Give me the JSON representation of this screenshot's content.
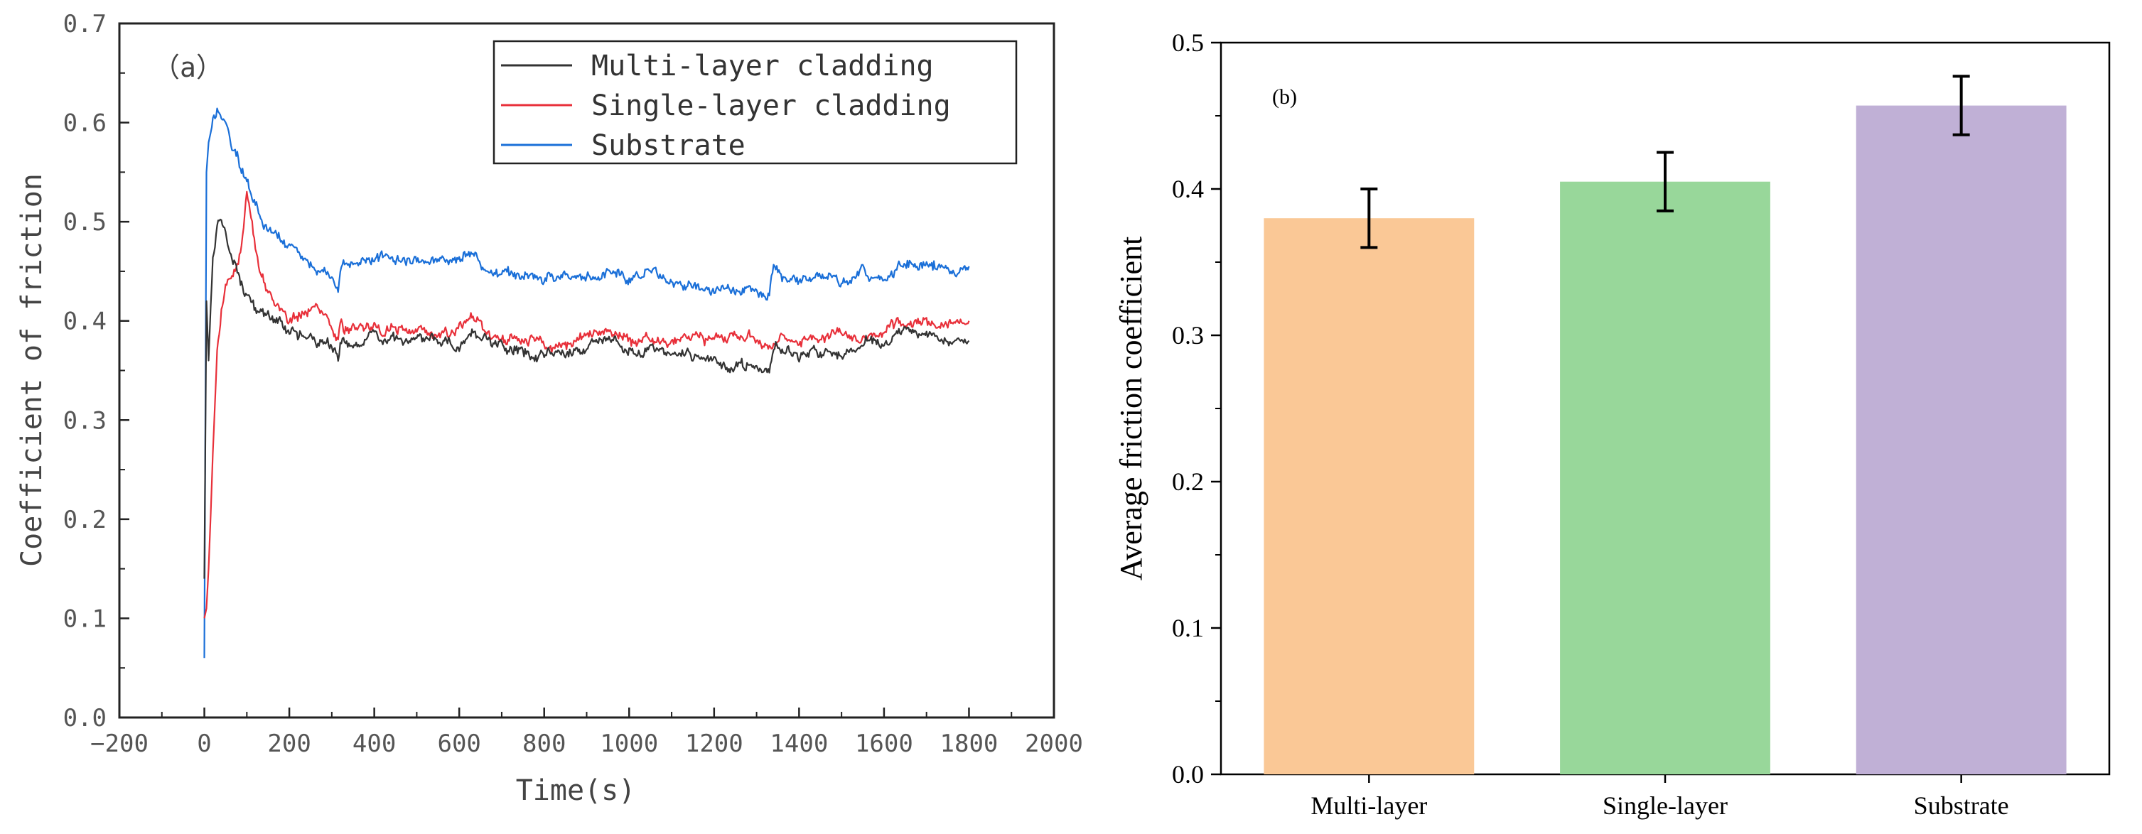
{
  "chart_data": [
    {
      "type": "line",
      "panel_label": "（a）",
      "xlabel": "Time(s)",
      "ylabel": "Coefficient of friction",
      "xlim": [
        -200,
        2000
      ],
      "ylim": [
        0.0,
        0.7
      ],
      "xticks": [
        "−200",
        "0",
        "200",
        "400",
        "600",
        "800",
        "1000",
        "1200",
        "1400",
        "1600",
        "1800",
        "2000"
      ],
      "yticks": [
        "0.0",
        "0.1",
        "0.2",
        "0.3",
        "0.4",
        "0.5",
        "0.6",
        "0.7"
      ],
      "legend_position": "top-right",
      "series": [
        {
          "name": "Multi-layer cladding",
          "color": "#333333",
          "x": [
            0,
            5,
            10,
            20,
            30,
            40,
            50,
            60,
            70,
            80,
            90,
            100,
            120,
            140,
            160,
            180,
            200,
            220,
            240,
            260,
            280,
            300,
            315,
            320,
            330,
            350,
            400,
            450,
            500,
            550,
            600,
            630,
            650,
            700,
            750,
            800,
            850,
            900,
            950,
            1000,
            1050,
            1100,
            1150,
            1200,
            1250,
            1300,
            1330,
            1340,
            1360,
            1400,
            1450,
            1500,
            1550,
            1600,
            1650,
            1700,
            1750,
            1800
          ],
          "y": [
            0.14,
            0.42,
            0.36,
            0.47,
            0.5,
            0.51,
            0.5,
            0.47,
            0.46,
            0.45,
            0.44,
            0.43,
            0.415,
            0.405,
            0.4,
            0.395,
            0.39,
            0.388,
            0.385,
            0.38,
            0.375,
            0.37,
            0.36,
            0.37,
            0.38,
            0.375,
            0.385,
            0.38,
            0.385,
            0.38,
            0.375,
            0.39,
            0.385,
            0.375,
            0.37,
            0.365,
            0.37,
            0.375,
            0.38,
            0.37,
            0.375,
            0.365,
            0.36,
            0.36,
            0.355,
            0.355,
            0.35,
            0.375,
            0.37,
            0.365,
            0.37,
            0.365,
            0.375,
            0.38,
            0.385,
            0.385,
            0.38,
            0.38
          ]
        },
        {
          "name": "Single-layer cladding",
          "color": "#e8303a",
          "x": [
            0,
            5,
            10,
            20,
            30,
            40,
            50,
            60,
            70,
            80,
            90,
            100,
            110,
            120,
            140,
            160,
            180,
            200,
            220,
            240,
            260,
            280,
            300,
            315,
            320,
            330,
            350,
            400,
            450,
            500,
            550,
            600,
            630,
            650,
            700,
            750,
            800,
            850,
            900,
            950,
            1000,
            1050,
            1100,
            1150,
            1200,
            1250,
            1300,
            1330,
            1340,
            1360,
            1400,
            1450,
            1500,
            1550,
            1600,
            1650,
            1700,
            1750,
            1800
          ],
          "y": [
            0.1,
            0.11,
            0.15,
            0.26,
            0.37,
            0.41,
            0.43,
            0.44,
            0.45,
            0.46,
            0.49,
            0.53,
            0.5,
            0.47,
            0.44,
            0.425,
            0.41,
            0.4,
            0.405,
            0.41,
            0.42,
            0.41,
            0.4,
            0.385,
            0.4,
            0.39,
            0.395,
            0.39,
            0.395,
            0.39,
            0.385,
            0.39,
            0.4,
            0.395,
            0.385,
            0.38,
            0.375,
            0.375,
            0.38,
            0.39,
            0.38,
            0.385,
            0.38,
            0.385,
            0.38,
            0.385,
            0.38,
            0.375,
            0.38,
            0.385,
            0.38,
            0.385,
            0.39,
            0.385,
            0.39,
            0.395,
            0.4,
            0.395,
            0.4
          ]
        },
        {
          "name": "Substrate",
          "color": "#1a6fd8",
          "x": [
            0,
            5,
            10,
            20,
            30,
            40,
            50,
            60,
            70,
            80,
            90,
            100,
            120,
            140,
            160,
            180,
            200,
            220,
            240,
            260,
            280,
            300,
            315,
            320,
            330,
            350,
            400,
            450,
            500,
            550,
            600,
            630,
            650,
            700,
            750,
            800,
            850,
            900,
            950,
            1000,
            1050,
            1100,
            1150,
            1200,
            1250,
            1300,
            1330,
            1340,
            1360,
            1400,
            1450,
            1500,
            1550,
            1600,
            1650,
            1700,
            1750,
            1800
          ],
          "y": [
            0.06,
            0.55,
            0.58,
            0.6,
            0.61,
            0.605,
            0.6,
            0.58,
            0.57,
            0.56,
            0.55,
            0.54,
            0.52,
            0.5,
            0.49,
            0.48,
            0.475,
            0.47,
            0.465,
            0.455,
            0.45,
            0.445,
            0.435,
            0.45,
            0.46,
            0.455,
            0.465,
            0.465,
            0.46,
            0.465,
            0.46,
            0.47,
            0.455,
            0.45,
            0.445,
            0.44,
            0.445,
            0.445,
            0.45,
            0.44,
            0.45,
            0.44,
            0.435,
            0.435,
            0.43,
            0.43,
            0.425,
            0.455,
            0.445,
            0.44,
            0.445,
            0.44,
            0.45,
            0.445,
            0.455,
            0.46,
            0.455,
            0.455
          ]
        }
      ]
    },
    {
      "type": "bar",
      "panel_label": "(b)",
      "xlabel": "",
      "ylabel": "Average friction coefficient",
      "ylim": [
        0.0,
        0.5
      ],
      "yticks": [
        "0.0",
        "0.1",
        "0.2",
        "0.3",
        "0.4",
        "0.5"
      ],
      "categories": [
        "Multi-layer",
        "Single-layer",
        "Substrate"
      ],
      "values": [
        0.38,
        0.405,
        0.457
      ],
      "errors": [
        0.02,
        0.02,
        0.02
      ],
      "colors": [
        "#fac896",
        "#98d79a",
        "#c0b0d6"
      ]
    }
  ]
}
